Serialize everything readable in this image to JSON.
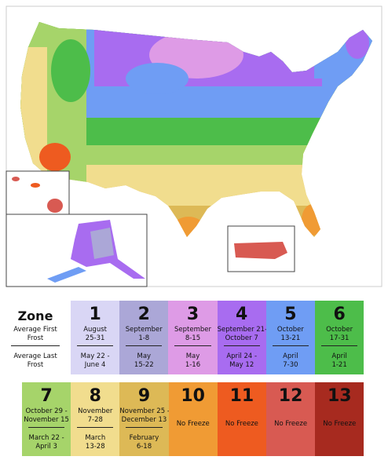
{
  "legend": {
    "zone_label": "Zone",
    "first_frost_label": "Average First Frost",
    "last_frost_label": "Average Last Frost",
    "zones": [
      {
        "zone": 1,
        "first_frost": [
          "August",
          "25-31"
        ],
        "last_frost": [
          "May 22 -",
          "June 4"
        ],
        "color": "#d9d6f5"
      },
      {
        "zone": 2,
        "first_frost": [
          "September",
          "1-8"
        ],
        "last_frost": [
          "May",
          "15-22"
        ],
        "color": "#aba7d7"
      },
      {
        "zone": 3,
        "first_frost": [
          "September",
          "8-15"
        ],
        "last_frost": [
          "May",
          "1-16"
        ],
        "color": "#de9be6"
      },
      {
        "zone": 4,
        "first_frost": [
          "September 21-",
          "October 7"
        ],
        "last_frost": [
          "April 24 -",
          "May 12"
        ],
        "color": "#a86cf0"
      },
      {
        "zone": 5,
        "first_frost": [
          "October",
          "13-21"
        ],
        "last_frost": [
          "April",
          "7-30"
        ],
        "color": "#6f9df4"
      },
      {
        "zone": 6,
        "first_frost": [
          "October",
          "17-31"
        ],
        "last_frost": [
          "April",
          "1-21"
        ],
        "color": "#4dbd4a"
      },
      {
        "zone": 7,
        "first_frost": [
          "October 29 -",
          "November 15"
        ],
        "last_frost": [
          "March 22 -",
          "April 3"
        ],
        "color": "#a6d46a"
      },
      {
        "zone": 8,
        "first_frost": [
          "November",
          "7-28"
        ],
        "last_frost": [
          "March",
          "13-28"
        ],
        "color": "#f1dd8e"
      },
      {
        "zone": 9,
        "first_frost": [
          "November 25 -",
          "December 13"
        ],
        "last_frost": [
          "February",
          "6-18"
        ],
        "color": "#ddb956"
      },
      {
        "zone": 10,
        "first_frost": [
          "No Freeze"
        ],
        "color": "#f09b34"
      },
      {
        "zone": 11,
        "first_frost": [
          "No Freeze"
        ],
        "color": "#ee5b20"
      },
      {
        "zone": 12,
        "first_frost": [
          "No Freeze"
        ],
        "color": "#d85a52"
      },
      {
        "zone": 13,
        "first_frost": [
          "No Freeze"
        ],
        "color": "#a72a1f"
      }
    ]
  }
}
